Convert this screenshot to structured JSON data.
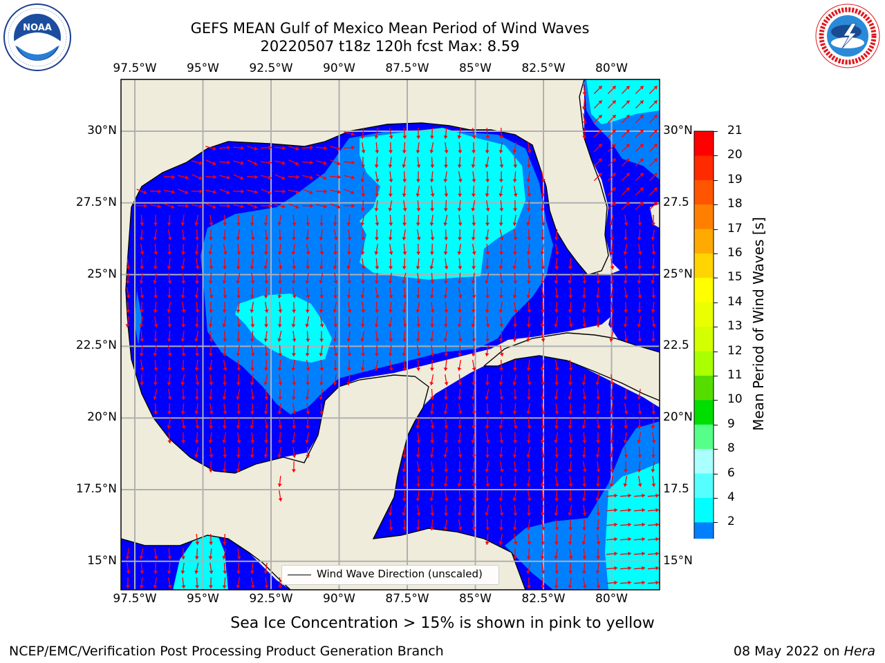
{
  "header": {
    "title_line1": "GEFS MEAN Gulf of Mexico Mean Period of Wind Waves",
    "title_line2": "20220507 t18z 120h fcst   Max: 8.59"
  },
  "logos": {
    "left": {
      "name": "NOAA",
      "ring_text": "NATIONAL OCEANIC AND ATMOSPHERIC ADMINISTRATION · U.S. DEPARTMENT OF COMMERCE"
    },
    "right": {
      "name": "NATIONAL WEATHER SERVICE"
    }
  },
  "map": {
    "lon_labels": [
      "97.5°W",
      "95°W",
      "92.5°W",
      "90°W",
      "87.5°W",
      "85°W",
      "82.5°W",
      "80°W"
    ],
    "lat_labels_left": [
      "30°N",
      "27.5°N",
      "25°N",
      "22.5°N",
      "20°N",
      "17.5°N",
      "15°N"
    ],
    "lat_labels_right": [
      "30°N",
      "27.5",
      "25°N",
      "22.5",
      "20°N",
      "17.5",
      "15°N"
    ],
    "legend_text": "Wind Wave Direction (unscaled)",
    "colors": {
      "land": "#efecdc",
      "ocean_2_4": "#0000ff",
      "ocean_4_6": "#0080ff",
      "ocean_6_8": "#00ffff",
      "arrow": "#ff0000",
      "grid": "#b0b0b0"
    }
  },
  "colorbar": {
    "label": "Mean Period of Wind Waves [s]",
    "ticks": [
      "21",
      "20",
      "19",
      "18",
      "17",
      "16",
      "15",
      "14",
      "13",
      "12",
      "11",
      "10",
      "9",
      "8",
      "6",
      "4",
      "2"
    ],
    "colors": [
      "#ff0000",
      "#ff2a00",
      "#ff5500",
      "#ff8000",
      "#ffaa00",
      "#ffd400",
      "#ffff00",
      "#eaff00",
      "#d4ff00",
      "#aaff00",
      "#55dd00",
      "#00dd00",
      "#55ff88",
      "#aaffff",
      "#55ffff",
      "#00ffff",
      "#0080ff",
      "#0000ff"
    ]
  },
  "footer": {
    "ice_note": "Sea Ice Concentration > 15% is shown in pink to yellow",
    "left": "NCEP/EMC/Verification Post Processing Product Generation Branch",
    "date": "08 May 2022 on ",
    "machine": "Hera"
  }
}
